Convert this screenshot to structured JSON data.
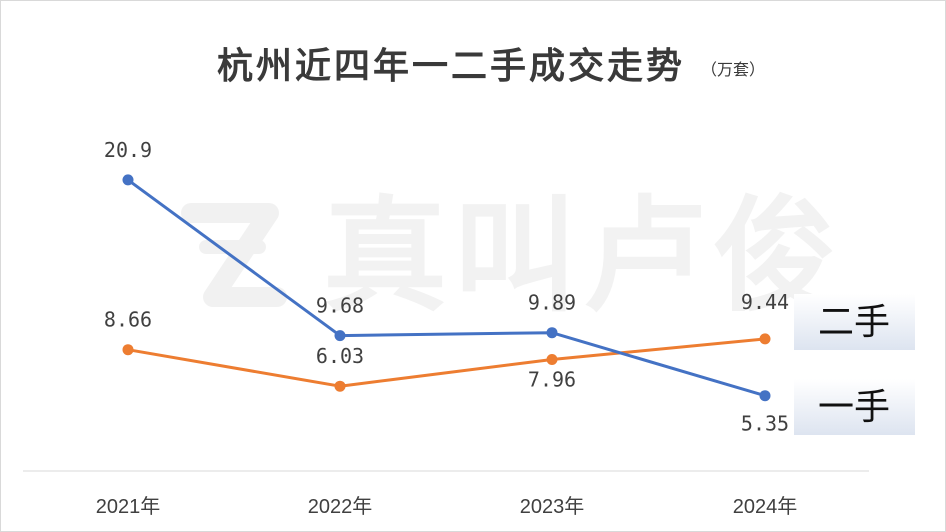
{
  "chart_data": {
    "type": "line",
    "title": "杭州近四年一二手成交走势",
    "unit": "（万套）",
    "categories": [
      "2021年",
      "2022年",
      "2023年",
      "2024年"
    ],
    "series": [
      {
        "name": "一手",
        "color": "#4472c4",
        "values": [
          20.9,
          9.68,
          9.89,
          5.35
        ],
        "labels": [
          "20.9",
          "9.68",
          "9.89",
          "5.35"
        ]
      },
      {
        "name": "二手",
        "color": "#ed7d31",
        "values": [
          8.66,
          6.03,
          7.96,
          9.44
        ],
        "labels": [
          "8.66",
          "6.03",
          "7.96",
          "9.44"
        ]
      }
    ],
    "grid": false,
    "legend": "right"
  },
  "watermark": {
    "text": "真叫卢俊"
  }
}
